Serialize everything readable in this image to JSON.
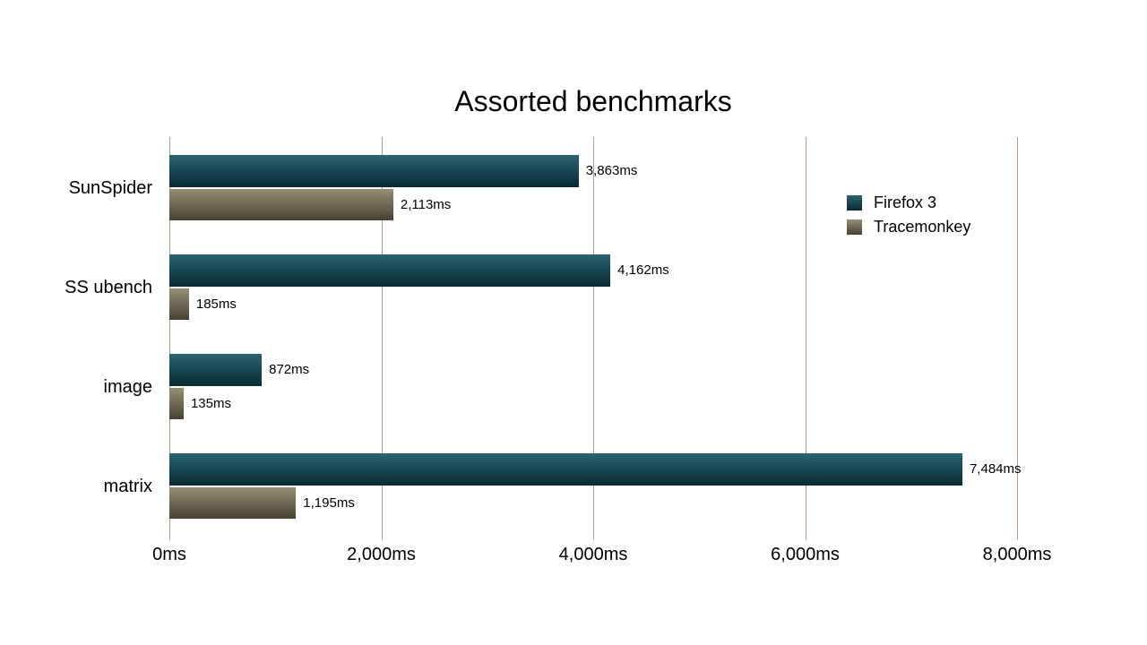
{
  "page": {
    "background_color": "#ffffff"
  },
  "chart_data": {
    "type": "bar",
    "orientation": "horizontal",
    "title": "Assorted benchmarks",
    "categories": [
      "SunSpider",
      "SS ubench",
      "image",
      "matrix"
    ],
    "series": [
      {
        "name": "Firefox 3",
        "values": [
          3863,
          4162,
          872,
          7484
        ],
        "value_labels": [
          "3,863ms",
          "4,162ms",
          "872ms",
          "7,484ms"
        ],
        "color_top": "#2b6475",
        "color_bottom": "#092b32"
      },
      {
        "name": "Tracemonkey",
        "values": [
          2113,
          185,
          135,
          1195
        ],
        "value_labels": [
          "2,113ms",
          "185ms",
          "135ms",
          "1,195ms"
        ],
        "color_top": "#968f74",
        "color_bottom": "#454031"
      }
    ],
    "x_ticks": [
      {
        "value": 0,
        "label": "0ms"
      },
      {
        "value": 2000,
        "label": "2,000ms"
      },
      {
        "value": 4000,
        "label": "4,000ms"
      },
      {
        "value": 6000,
        "label": "6,000ms"
      },
      {
        "value": 8000,
        "label": "8,000ms"
      }
    ],
    "xlim": [
      0,
      8000
    ],
    "unit": "ms",
    "grid": true,
    "gridline_color": "#b59b84",
    "legend_position": "right",
    "legend_entries": [
      "Firefox 3",
      "Tracemonkey"
    ]
  }
}
